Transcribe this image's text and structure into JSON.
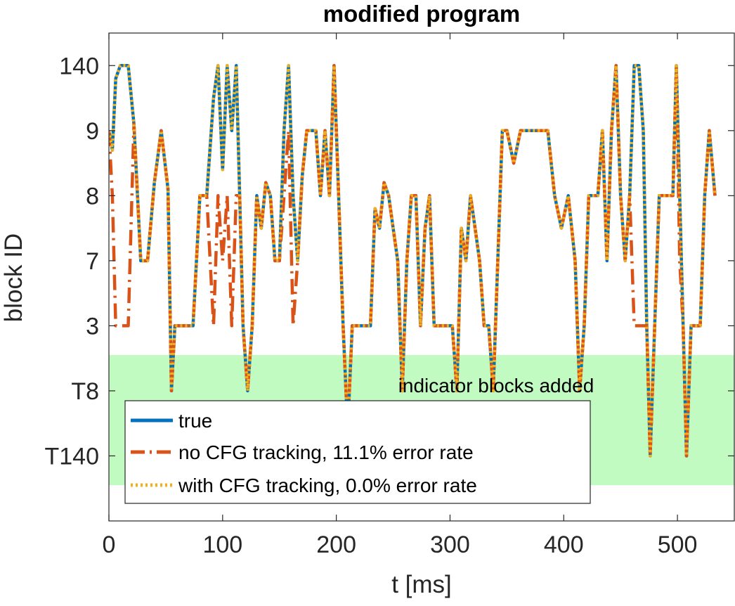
{
  "chart_data": {
    "type": "line",
    "title": "modified program",
    "xlabel": "t [ms]",
    "ylabel": "block ID",
    "xlim": [
      0,
      550
    ],
    "ylim": [
      -1,
      6.5
    ],
    "x_ticks": [
      0,
      100,
      200,
      300,
      400,
      500
    ],
    "x_tick_labels": [
      "0",
      "100",
      "200",
      "300",
      "400",
      "500"
    ],
    "y_tick_positions": [
      0,
      1,
      2,
      3,
      4,
      5,
      6
    ],
    "y_tick_labels": [
      "T140",
      "T8",
      "3",
      "7",
      "8",
      "9",
      "140"
    ],
    "grid": false,
    "legend_position": "bottom-left",
    "region": {
      "label": "indicator blocks added",
      "y_range": [
        -0.45,
        1.55
      ],
      "color": "#c2fbc2"
    },
    "series": [
      {
        "name": "true",
        "color": "#0072bd",
        "style": "solid",
        "x": [
          0,
          3,
          6,
          10,
          13,
          17,
          22,
          28,
          34,
          40,
          46,
          52,
          55,
          58,
          62,
          68,
          74,
          80,
          86,
          92,
          96,
          100,
          104,
          108,
          112,
          115,
          118,
          122,
          126,
          130,
          134,
          138,
          142,
          146,
          150,
          154,
          158,
          162,
          166,
          170,
          174,
          178,
          182,
          186,
          190,
          194,
          198,
          202,
          206,
          210,
          214,
          218,
          222,
          226,
          230,
          234,
          238,
          242,
          246,
          250,
          254,
          258,
          262,
          266,
          270,
          274,
          278,
          282,
          286,
          290,
          294,
          298,
          302,
          306,
          310,
          314,
          318,
          322,
          326,
          330,
          334,
          338,
          342,
          346,
          350,
          356,
          362,
          368,
          374,
          380,
          386,
          392,
          398,
          404,
          410,
          414,
          418,
          422,
          426,
          430,
          434,
          438,
          442,
          446,
          450,
          454,
          458,
          462,
          466,
          470,
          473,
          476,
          480,
          484,
          488,
          492,
          496,
          499,
          502,
          505,
          508,
          512,
          516,
          520,
          524,
          528,
          533
        ],
        "y": [
          5.0,
          4.7,
          5.8,
          6.0,
          6.0,
          6.0,
          5.1,
          3.0,
          3.0,
          4.2,
          5.0,
          4.1,
          1.0,
          2.0,
          2.0,
          2.0,
          2.0,
          4.0,
          4.0,
          5.5,
          6.0,
          4.4,
          6.0,
          5.0,
          6.0,
          4.0,
          2.0,
          1.0,
          2.0,
          4.0,
          3.5,
          4.2,
          4.0,
          3.0,
          3.0,
          5.0,
          6.0,
          4.0,
          3.0,
          4.3,
          5.0,
          5.0,
          5.0,
          4.0,
          5.0,
          4.0,
          6.0,
          4.0,
          2.0,
          0.4,
          2.0,
          2.0,
          2.0,
          2.0,
          2.0,
          3.8,
          3.5,
          4.2,
          4.0,
          3.5,
          3.0,
          1.0,
          3.0,
          4.0,
          4.0,
          2.0,
          3.5,
          4.0,
          2.0,
          2.0,
          2.0,
          2.0,
          2.0,
          1.0,
          3.5,
          3.0,
          4.0,
          3.5,
          3.0,
          2.0,
          2.0,
          1.0,
          3.0,
          5.0,
          5.0,
          4.5,
          5.0,
          5.0,
          5.0,
          5.0,
          5.0,
          4.0,
          3.5,
          4.0,
          3.0,
          1.0,
          2.0,
          4.0,
          4.0,
          4.0,
          5.0,
          3.0,
          5.0,
          6.0,
          4.0,
          3.0,
          4.0,
          6.0,
          6.0,
          5.0,
          2.0,
          0.0,
          2.0,
          4.0,
          4.0,
          4.0,
          4.0,
          6.0,
          4.0,
          2.0,
          0.0,
          2.0,
          2.0,
          2.0,
          4.0,
          5.0,
          4.0
        ]
      },
      {
        "name": "no CFG tracking, 11.1% error rate",
        "color": "#d95319",
        "style": "dashdot",
        "x": [
          0,
          3,
          6,
          10,
          13,
          17,
          22,
          28,
          34,
          40,
          46,
          52,
          55,
          58,
          62,
          68,
          74,
          80,
          86,
          92,
          96,
          100,
          104,
          108,
          112,
          115,
          118,
          122,
          126,
          130,
          134,
          138,
          142,
          146,
          150,
          154,
          158,
          162,
          166,
          170,
          174,
          178,
          182,
          186,
          190,
          194,
          198,
          202,
          206,
          210,
          214,
          218,
          222,
          226,
          230,
          234,
          238,
          242,
          246,
          250,
          254,
          258,
          262,
          266,
          270,
          274,
          278,
          282,
          286,
          290,
          294,
          298,
          302,
          306,
          310,
          314,
          318,
          322,
          326,
          330,
          334,
          338,
          342,
          346,
          350,
          356,
          362,
          368,
          374,
          380,
          386,
          392,
          398,
          404,
          410,
          414,
          418,
          422,
          426,
          430,
          434,
          438,
          442,
          446,
          450,
          454,
          458,
          462,
          466,
          470,
          473,
          476,
          480,
          484,
          488,
          492,
          496,
          499,
          502,
          505,
          508,
          512,
          516,
          520,
          524,
          528,
          533
        ],
        "y": [
          5.0,
          4.0,
          2.0,
          2.0,
          2.0,
          2.0,
          5.1,
          3.0,
          3.0,
          4.2,
          5.0,
          4.1,
          1.0,
          2.0,
          2.0,
          2.0,
          2.0,
          4.0,
          4.0,
          2.0,
          4.0,
          3.0,
          4.0,
          2.0,
          4.0,
          4.0,
          2.0,
          1.0,
          2.0,
          4.0,
          3.5,
          4.2,
          4.0,
          3.0,
          3.0,
          4.0,
          5.0,
          2.0,
          3.0,
          4.3,
          5.0,
          5.0,
          5.0,
          4.0,
          5.0,
          4.0,
          6.0,
          4.0,
          2.0,
          0.4,
          2.0,
          2.0,
          2.0,
          2.0,
          2.0,
          3.8,
          3.5,
          4.2,
          4.0,
          3.5,
          3.0,
          1.0,
          3.0,
          4.0,
          4.0,
          2.0,
          3.5,
          4.0,
          2.0,
          2.0,
          2.0,
          2.0,
          2.0,
          1.0,
          3.5,
          3.0,
          4.0,
          3.5,
          3.0,
          2.0,
          2.0,
          1.0,
          3.0,
          5.0,
          5.0,
          4.5,
          5.0,
          5.0,
          5.0,
          5.0,
          5.0,
          4.0,
          3.5,
          4.0,
          3.0,
          1.0,
          2.0,
          4.0,
          4.0,
          4.0,
          5.0,
          3.0,
          5.0,
          6.0,
          4.0,
          3.0,
          4.0,
          2.0,
          2.0,
          2.0,
          2.0,
          0.0,
          2.0,
          4.0,
          4.0,
          4.0,
          4.0,
          6.0,
          3.0,
          2.0,
          0.0,
          2.0,
          2.0,
          2.0,
          4.0,
          5.0,
          4.0
        ]
      },
      {
        "name": "with CFG tracking, 0.0% error rate",
        "color": "#edb120",
        "style": "dotted",
        "x": [
          0,
          3,
          6,
          10,
          13,
          17,
          22,
          28,
          34,
          40,
          46,
          52,
          55,
          58,
          62,
          68,
          74,
          80,
          86,
          92,
          96,
          100,
          104,
          108,
          112,
          115,
          118,
          122,
          126,
          130,
          134,
          138,
          142,
          146,
          150,
          154,
          158,
          162,
          166,
          170,
          174,
          178,
          182,
          186,
          190,
          194,
          198,
          202,
          206,
          210,
          214,
          218,
          222,
          226,
          230,
          234,
          238,
          242,
          246,
          250,
          254,
          258,
          262,
          266,
          270,
          274,
          278,
          282,
          286,
          290,
          294,
          298,
          302,
          306,
          310,
          314,
          318,
          322,
          326,
          330,
          334,
          338,
          342,
          346,
          350,
          356,
          362,
          368,
          374,
          380,
          386,
          392,
          398,
          404,
          410,
          414,
          418,
          422,
          426,
          430,
          434,
          438,
          442,
          446,
          450,
          454,
          458,
          462,
          466,
          470,
          473,
          476,
          480,
          484,
          488,
          492,
          496,
          499,
          502,
          505,
          508,
          512,
          516,
          520,
          524,
          528,
          533
        ],
        "y": [
          5.0,
          4.7,
          5.8,
          6.0,
          6.0,
          6.0,
          5.1,
          3.0,
          3.0,
          4.2,
          5.0,
          4.1,
          1.0,
          2.0,
          2.0,
          2.0,
          2.0,
          4.0,
          4.0,
          5.5,
          6.0,
          4.4,
          6.0,
          5.0,
          6.0,
          4.0,
          2.0,
          1.0,
          2.0,
          4.0,
          3.5,
          4.2,
          4.0,
          3.0,
          3.0,
          5.0,
          6.0,
          4.0,
          3.0,
          4.3,
          5.0,
          5.0,
          5.0,
          4.0,
          5.0,
          4.0,
          6.0,
          4.0,
          2.0,
          0.4,
          2.0,
          2.0,
          2.0,
          2.0,
          2.0,
          3.8,
          3.5,
          4.2,
          4.0,
          3.5,
          3.0,
          1.0,
          3.0,
          4.0,
          4.0,
          2.0,
          3.5,
          4.0,
          2.0,
          2.0,
          2.0,
          2.0,
          2.0,
          1.0,
          3.5,
          3.0,
          4.0,
          3.5,
          3.0,
          2.0,
          2.0,
          1.0,
          3.0,
          5.0,
          5.0,
          4.5,
          5.0,
          5.0,
          5.0,
          5.0,
          5.0,
          4.0,
          3.5,
          4.0,
          3.0,
          1.0,
          2.0,
          4.0,
          4.0,
          4.0,
          5.0,
          3.0,
          5.0,
          6.0,
          4.0,
          3.0,
          4.0,
          6.0,
          6.0,
          5.0,
          2.0,
          0.0,
          2.0,
          4.0,
          4.0,
          4.0,
          4.0,
          6.0,
          4.0,
          2.0,
          0.0,
          2.0,
          2.0,
          2.0,
          4.0,
          5.0,
          4.0
        ]
      }
    ]
  }
}
